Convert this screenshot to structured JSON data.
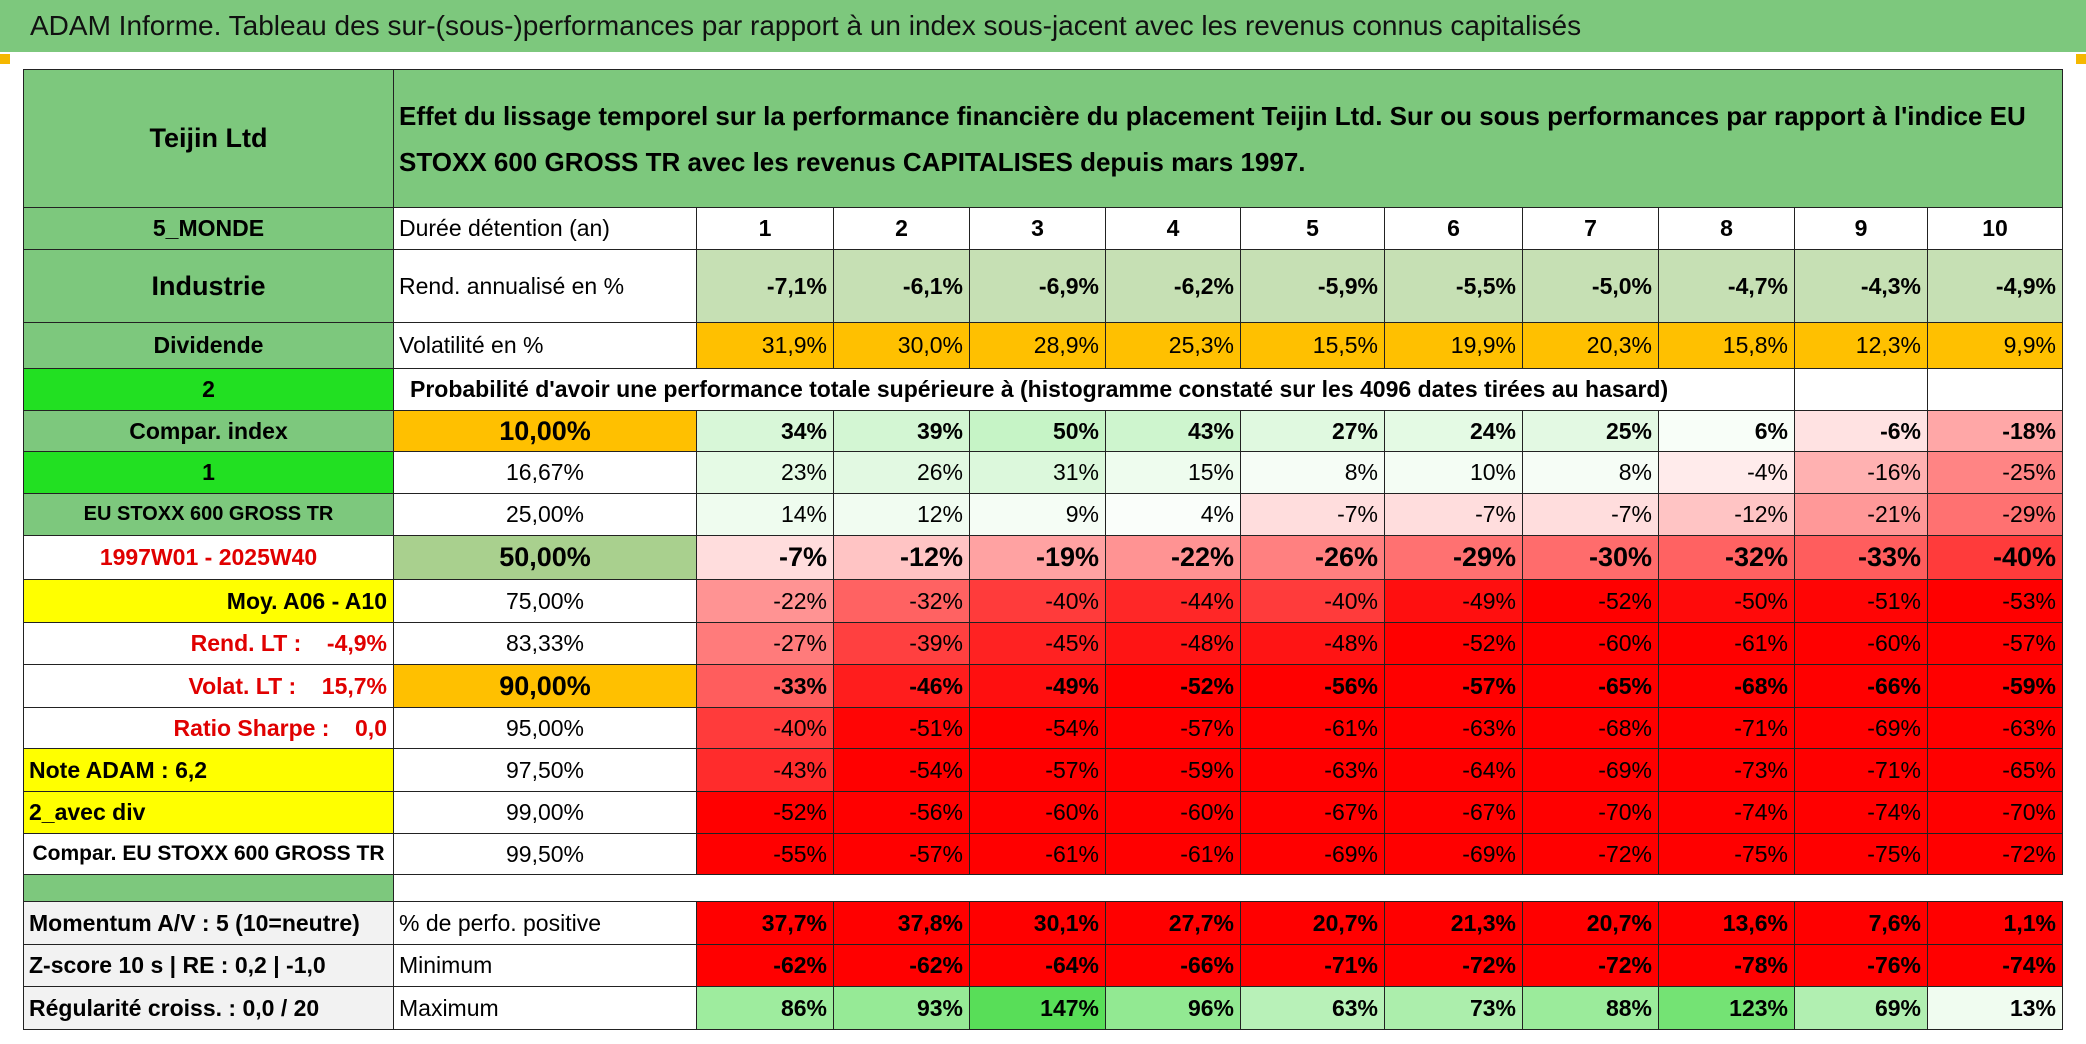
{
  "header": {
    "title": "ADAM Informe. Tableau des sur-(sous-)performances par rapport à un index sous-jacent avec les revenus connus capitalisés"
  },
  "table": {
    "name": "Teijin Ltd",
    "description": "Effet du lissage temporel sur la performance financière du placement Teijin Ltd. Sur ou sous performances par rapport à l'indice EU STOXX 600 GROSS TR avec les revenus CAPITALISES depuis mars 1997.",
    "rows": [
      {
        "label": "5_MONDE",
        "sub": "Durée détention (an)",
        "cells": [
          "1",
          "2",
          "3",
          "4",
          "5",
          "6",
          "7",
          "8",
          "9",
          "10"
        ]
      },
      {
        "label": "Industrie",
        "sub": "Rend. annualisé en %",
        "cells": [
          "-7,1%",
          "-6,1%",
          "-6,9%",
          "-6,2%",
          "-5,9%",
          "-5,5%",
          "-5,0%",
          "-4,7%",
          "-4,3%",
          "-4,9%"
        ]
      },
      {
        "label": "Dividende",
        "sub": "Volatilité en %",
        "cells": [
          "31,9%",
          "30,0%",
          "28,9%",
          "25,3%",
          "15,5%",
          "19,9%",
          "20,3%",
          "15,8%",
          "12,3%",
          "9,9%"
        ]
      },
      {
        "label": "2",
        "sub": "Probabilité d'avoir une performance totale supérieure à (histogramme constaté sur les 4096 dates tirées au hasard)"
      },
      {
        "label": "Compar. index",
        "sub": "10,00%",
        "cells": [
          "34%",
          "39%",
          "50%",
          "43%",
          "27%",
          "24%",
          "25%",
          "6%",
          "-6%",
          "-18%"
        ]
      },
      {
        "label": "1",
        "sub": "16,67%",
        "cells": [
          "23%",
          "26%",
          "31%",
          "15%",
          "8%",
          "10%",
          "8%",
          "-4%",
          "-16%",
          "-25%"
        ]
      },
      {
        "label": "EU STOXX 600 GROSS TR",
        "sub": "25,00%",
        "cells": [
          "14%",
          "12%",
          "9%",
          "4%",
          "-7%",
          "-7%",
          "-7%",
          "-12%",
          "-21%",
          "-29%"
        ]
      },
      {
        "label": "1997W01 - 2025W40",
        "sub": "50,00%",
        "cells": [
          "-7%",
          "-12%",
          "-19%",
          "-22%",
          "-26%",
          "-29%",
          "-30%",
          "-32%",
          "-33%",
          "-40%"
        ]
      },
      {
        "label": "Moy. A06 - A10",
        "sub": "75,00%",
        "cells": [
          "-22%",
          "-32%",
          "-40%",
          "-44%",
          "-40%",
          "-49%",
          "-52%",
          "-50%",
          "-51%",
          "-53%"
        ]
      },
      {
        "label": "Rend. LT :    -4,9%",
        "sub": "83,33%",
        "cells": [
          "-27%",
          "-39%",
          "-45%",
          "-48%",
          "-48%",
          "-52%",
          "-60%",
          "-61%",
          "-60%",
          "-57%"
        ]
      },
      {
        "label": "Volat. LT :    15,7%",
        "sub": "90,00%",
        "cells": [
          "-33%",
          "-46%",
          "-49%",
          "-52%",
          "-56%",
          "-57%",
          "-65%",
          "-68%",
          "-66%",
          "-59%"
        ]
      },
      {
        "label": "Ratio Sharpe :    0,0",
        "sub": "95,00%",
        "cells": [
          "-40%",
          "-51%",
          "-54%",
          "-57%",
          "-61%",
          "-63%",
          "-68%",
          "-71%",
          "-69%",
          "-63%"
        ]
      },
      {
        "label": "Note ADAM : 6,2",
        "sub": "97,50%",
        "cells": [
          "-43%",
          "-54%",
          "-57%",
          "-59%",
          "-63%",
          "-64%",
          "-69%",
          "-73%",
          "-71%",
          "-65%"
        ]
      },
      {
        "label": "2_avec div",
        "sub": "99,00%",
        "cells": [
          "-52%",
          "-56%",
          "-60%",
          "-60%",
          "-67%",
          "-67%",
          "-70%",
          "-74%",
          "-74%",
          "-70%"
        ]
      },
      {
        "label": "Compar. EU STOXX 600 GROSS TR",
        "sub": "99,50%",
        "cells": [
          "-55%",
          "-57%",
          "-61%",
          "-61%",
          "-69%",
          "-69%",
          "-72%",
          "-75%",
          "-75%",
          "-72%"
        ]
      },
      {
        "label": "Momentum A/V : 5 (10=neutre)",
        "sub": "% de perfo. positive",
        "cells": [
          "37,7%",
          "37,8%",
          "30,1%",
          "27,7%",
          "20,7%",
          "21,3%",
          "20,7%",
          "13,6%",
          "7,6%",
          "1,1%"
        ]
      },
      {
        "label": "Z-score 10 s | RE : 0,2 | -1,0",
        "sub": "Minimum",
        "cells": [
          "-62%",
          "-62%",
          "-64%",
          "-66%",
          "-71%",
          "-72%",
          "-72%",
          "-78%",
          "-76%",
          "-74%"
        ]
      },
      {
        "label": "Régularité croiss. : 0,0 / 20",
        "sub": "Maximum",
        "cells": [
          "86%",
          "93%",
          "147%",
          "96%",
          "63%",
          "73%",
          "88%",
          "123%",
          "69%",
          "13%"
        ]
      }
    ]
  }
}
